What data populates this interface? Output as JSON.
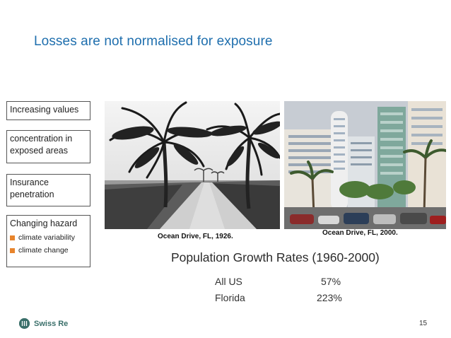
{
  "slide": {
    "title": "Losses are not normalised for exposure",
    "page_number": "15"
  },
  "factors": [
    {
      "label": "Increasing values"
    },
    {
      "label": "concentration in exposed areas"
    },
    {
      "label": "Insurance penetration"
    },
    {
      "label": "Changing hazard",
      "sub_items": [
        "climate variability",
        "climate change"
      ]
    }
  ],
  "photos": [
    {
      "icon": "palm-road-photo-1926",
      "caption": "Ocean Drive, FL, 1926."
    },
    {
      "icon": "city-street-photo-2000",
      "caption": "Ocean Drive, FL, 2000."
    }
  ],
  "population": {
    "heading": "Population Growth Rates (1960-2000)",
    "rows": [
      {
        "label": "All US",
        "value": "57%"
      },
      {
        "label": "Florida",
        "value": "223%"
      }
    ]
  },
  "logo": {
    "text": "Swiss Re",
    "color": "#3a6f6a"
  },
  "colors": {
    "title": "#1f6fae",
    "bullet": "#e8842c"
  }
}
